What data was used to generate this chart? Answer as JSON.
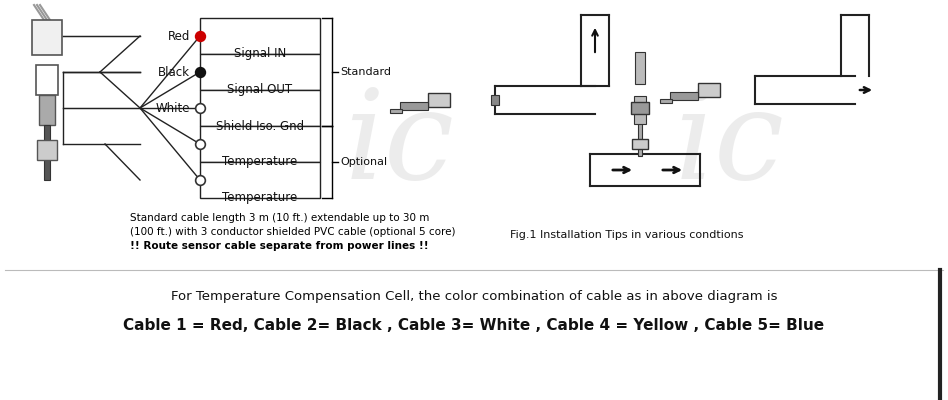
{
  "bg_color": "#ffffff",
  "wiring_rows": [
    "Signal IN",
    "Signal OUT",
    "Shield Iso. Gnd",
    "Temperature",
    "Temperature"
  ],
  "wire_labels": [
    "Red",
    "Black",
    "White"
  ],
  "standard_label": "Standard",
  "optional_label": "Optional",
  "note_line1": "Standard cable length 3 m (10 ft.) extendable up to 30 m",
  "note_line2": "(100 ft.) with 3 conductor shielded PVC cable (optional 5 core)",
  "note_line3": "!! Route sensor cable separate from power lines !!",
  "fig_caption": "Fig.1 Installation Tips in various condtions",
  "bottom_text1": "For Temperature Compensation Cell, the color combination of cable as in above diagram is",
  "bottom_text2": "Cable 1 = Red, Cable 2= Black , Cable 3= White , Cable 4 = Yellow , Cable 5= Blue",
  "watermark_left": "ic",
  "watermark_right": "ic"
}
